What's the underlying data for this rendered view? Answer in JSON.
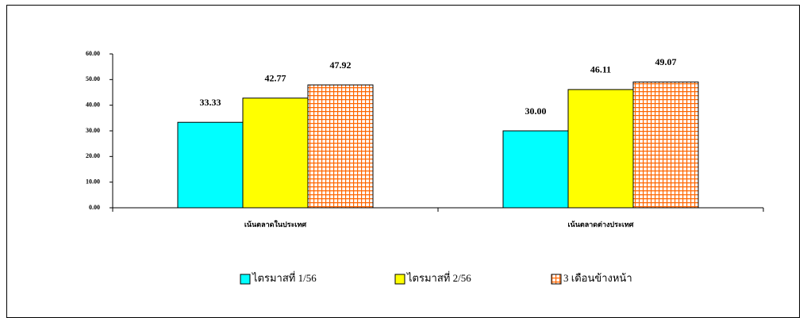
{
  "chart_data": {
    "type": "bar",
    "categories": [
      "เน้นตลาดในประเทศ",
      "เน้นตลาดต่างประเทศ"
    ],
    "series": [
      {
        "name": "ไตรมาสที่ 1/56",
        "color": "#00ffff",
        "values": [
          33.33,
          30.0
        ],
        "value_labels": [
          "33.33",
          "30.00"
        ]
      },
      {
        "name": "ไตรมาสที่ 2/56",
        "color": "#ffff00",
        "values": [
          42.77,
          46.11
        ]
      },
      {
        "name": "3 เดือนข้างหน้า",
        "color": "#ff6600",
        "pattern": "grid",
        "values": [
          47.92,
          49.07
        ]
      }
    ],
    "ylim": [
      0,
      60
    ],
    "yticks": [
      {
        "value": 0,
        "label": "0.00"
      },
      {
        "value": 10,
        "label": "10.00"
      },
      {
        "value": 20,
        "label": "20.00"
      },
      {
        "value": 30,
        "label": "30.00"
      },
      {
        "value": 40,
        "label": "40.00"
      },
      {
        "value": 50,
        "label": "50.00"
      },
      {
        "value": 60,
        "label": "60.00"
      }
    ],
    "legend": "bottom"
  }
}
